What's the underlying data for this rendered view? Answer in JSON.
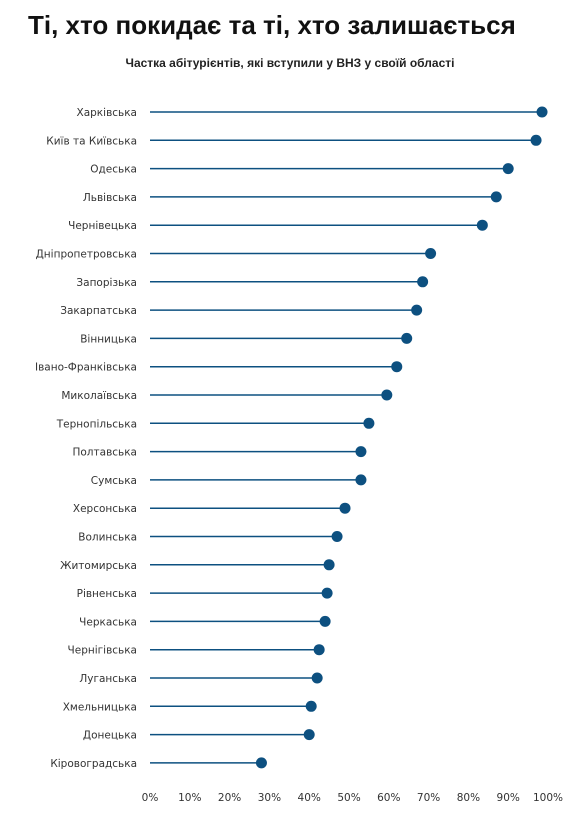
{
  "chart_data": {
    "type": "lollipop",
    "title": "Ті, хто покидає та ті, хто залишається",
    "subtitle": "Частка абітурієнтів, які вступили у ВНЗ у своїй області",
    "xlim": [
      0,
      100
    ],
    "x_ticks": [
      "0%",
      "10%",
      "20%",
      "30%",
      "40%",
      "50%",
      "60%",
      "70%",
      "80%",
      "90%",
      "100%"
    ],
    "categories": [
      "Харківська",
      "Київ та Київська",
      "Одеська",
      "Львівська",
      "Чернівецька",
      "Дніпропетровська",
      "Запорізька",
      "Закарпатська",
      "Вінницька",
      "Івано-Франківська",
      "Миколаївська",
      "Тернопільська",
      "Полтавська",
      "Сумська",
      "Херсонська",
      "Волинська",
      "Житомирська",
      "Рівненська",
      "Черкаська",
      "Чернігівська",
      "Луганська",
      "Хмельницька",
      "Донецька",
      "Кіровоградська"
    ],
    "values": [
      98.5,
      97,
      90,
      87,
      83.5,
      70.5,
      68.5,
      67,
      64.5,
      62,
      59.5,
      55,
      53,
      53,
      49,
      47,
      45,
      44.5,
      44,
      42.5,
      42,
      40.5,
      40,
      28
    ],
    "color": "#0d5080",
    "grid": false
  }
}
